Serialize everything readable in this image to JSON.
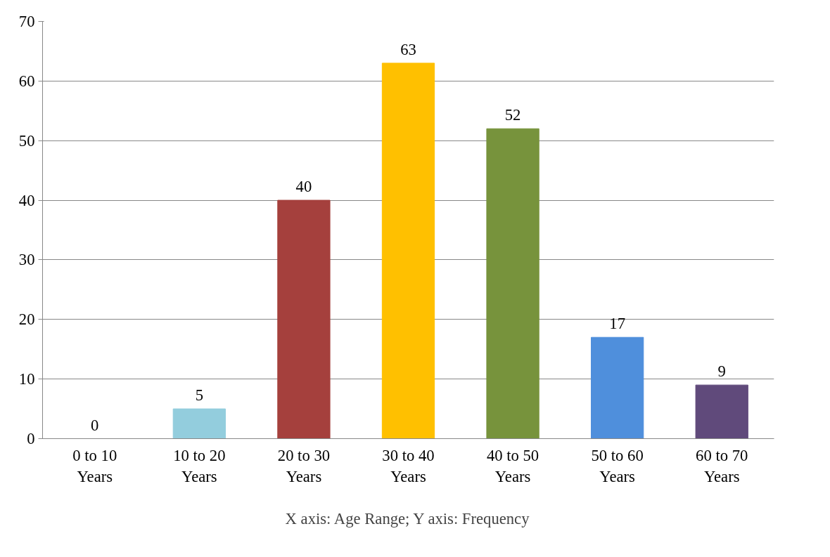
{
  "chart_data": {
    "type": "bar",
    "categories": [
      "0 to 10 Years",
      "10 to 20 Years",
      "20 to 30 Years",
      "30 to 40 Years",
      "40 to 50 Years",
      "50 to 60 Years",
      "60 to 70 Years"
    ],
    "values": [
      0,
      5,
      40,
      63,
      52,
      17,
      9
    ],
    "colors": [
      "#808080",
      "#93cddd",
      "#a5403d",
      "#ffc000",
      "#77933c",
      "#4f8fdc",
      "#604a7b"
    ],
    "ylim": [
      0,
      70
    ],
    "yticks": [
      0,
      10,
      20,
      30,
      40,
      50,
      60,
      70
    ],
    "grid": "y",
    "data_labels": true,
    "annotations": [
      "X axis: Age Range; Y axis: Frequency"
    ]
  }
}
